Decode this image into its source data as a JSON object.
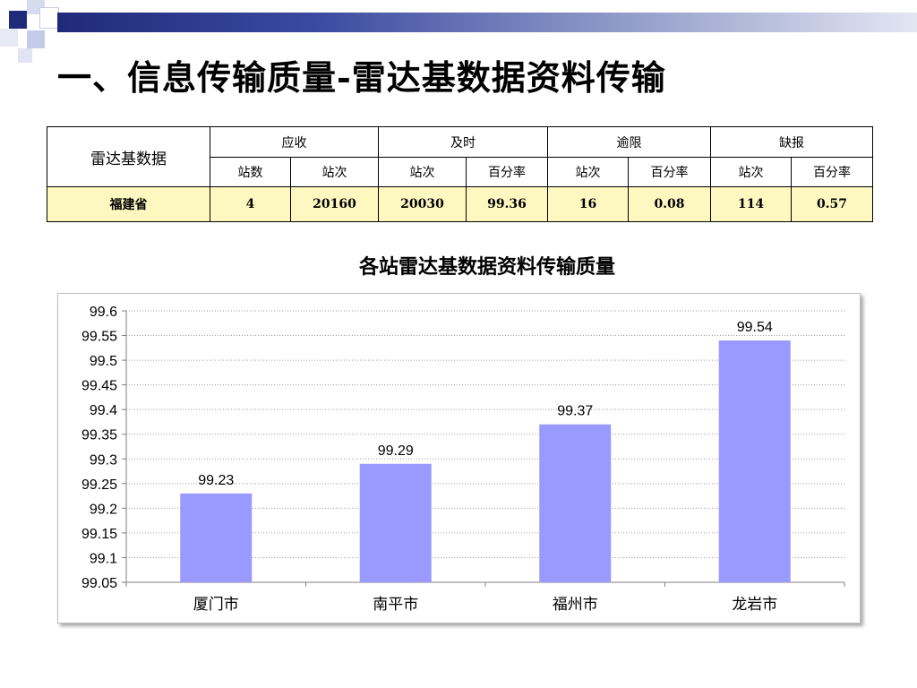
{
  "title": "一、信息传输质量-雷达基数据资料传输",
  "table": {
    "corner_label": "雷达基数据",
    "groups": [
      {
        "label": "应收",
        "subcols": [
          "站数",
          "站次"
        ]
      },
      {
        "label": "及时",
        "subcols": [
          "站次",
          "百分率"
        ]
      },
      {
        "label": "逾限",
        "subcols": [
          "站次",
          "百分率"
        ]
      },
      {
        "label": "缺报",
        "subcols": [
          "站次",
          "百分率"
        ]
      }
    ],
    "rows": [
      {
        "label": "福建省",
        "values": [
          "4",
          "20160",
          "20030",
          "99.36",
          "16",
          "0.08",
          "114",
          "0.57"
        ]
      }
    ]
  },
  "chart_data": {
    "type": "bar",
    "title": "各站雷达基数据资料传输质量",
    "categories": [
      "厦门市",
      "南平市",
      "福州市",
      "龙岩市"
    ],
    "values": [
      99.23,
      99.29,
      99.37,
      99.54
    ],
    "data_labels": [
      "99.23",
      "99.29",
      "99.37",
      "99.54"
    ],
    "ylim": [
      99.05,
      99.6
    ],
    "yticks": [
      "99.05",
      "99.1",
      "99.15",
      "99.2",
      "99.25",
      "99.3",
      "99.35",
      "99.4",
      "99.45",
      "99.5",
      "99.55",
      "99.6"
    ],
    "grid": true,
    "bar_color": "#9999ff",
    "legend": "none"
  },
  "colors": {
    "highlight_row": "#fdf8c0",
    "header_bar": "#1f2a7a"
  }
}
